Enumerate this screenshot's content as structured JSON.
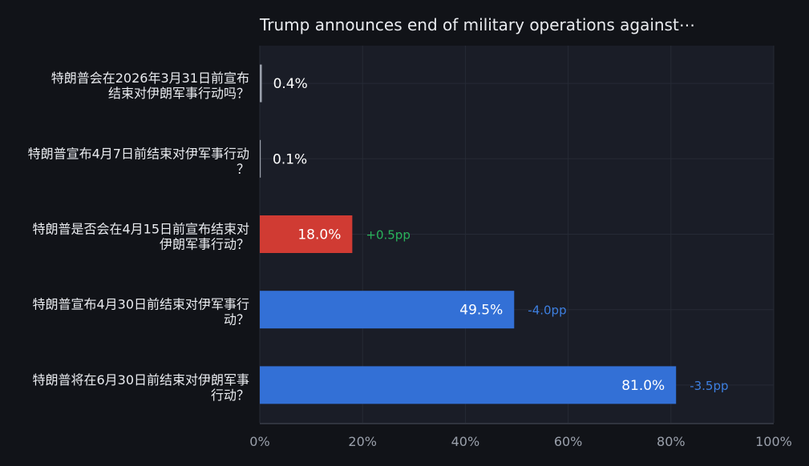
{
  "chart_data": {
    "type": "bar",
    "orientation": "horizontal",
    "title": "Trump announces end of military operations against⋯",
    "xlabel": "",
    "ylabel": "",
    "xlim": [
      0,
      100
    ],
    "x_ticks": [
      "0%",
      "20%",
      "40%",
      "60%",
      "80%",
      "100%"
    ],
    "x_tick_values": [
      0,
      20,
      40,
      60,
      80,
      100
    ],
    "grid": true,
    "categories": [
      [
        "特朗普会在2026年3月31日前宣布",
        "结束对伊朗军事行动吗？"
      ],
      [
        "特朗普宣布4月7日前结束对伊军事行动",
        "？"
      ],
      [
        "特朗普是否会在4月15日前宣布结束对",
        "伊朗军事行动？"
      ],
      [
        "特朗普宣布4月30日前结束对伊军事行",
        "动？"
      ],
      [
        "特朗普将在6月30日前结束对伊朗军事",
        "行动？"
      ]
    ],
    "values": [
      0.4,
      0.1,
      18.0,
      49.5,
      81.0
    ],
    "value_labels": [
      "0.4%",
      "0.1%",
      "18.0%",
      "49.5%",
      "81.0%"
    ],
    "deltas": [
      "",
      "",
      "+0.5pp",
      "-4.0pp",
      "-3.5pp"
    ],
    "bar_colors": [
      "#9aa0ab",
      "#9aa0ab",
      "#d03b33",
      "#3370d6",
      "#3370d6"
    ],
    "delta_colors": [
      "",
      "",
      "#29b35b",
      "#3d7fe0",
      "#3d7fe0"
    ]
  },
  "colors": {
    "background": "#111318",
    "plot_background": "#1a1d27",
    "grid": "#262a35",
    "axis": "#3a3f4b"
  }
}
